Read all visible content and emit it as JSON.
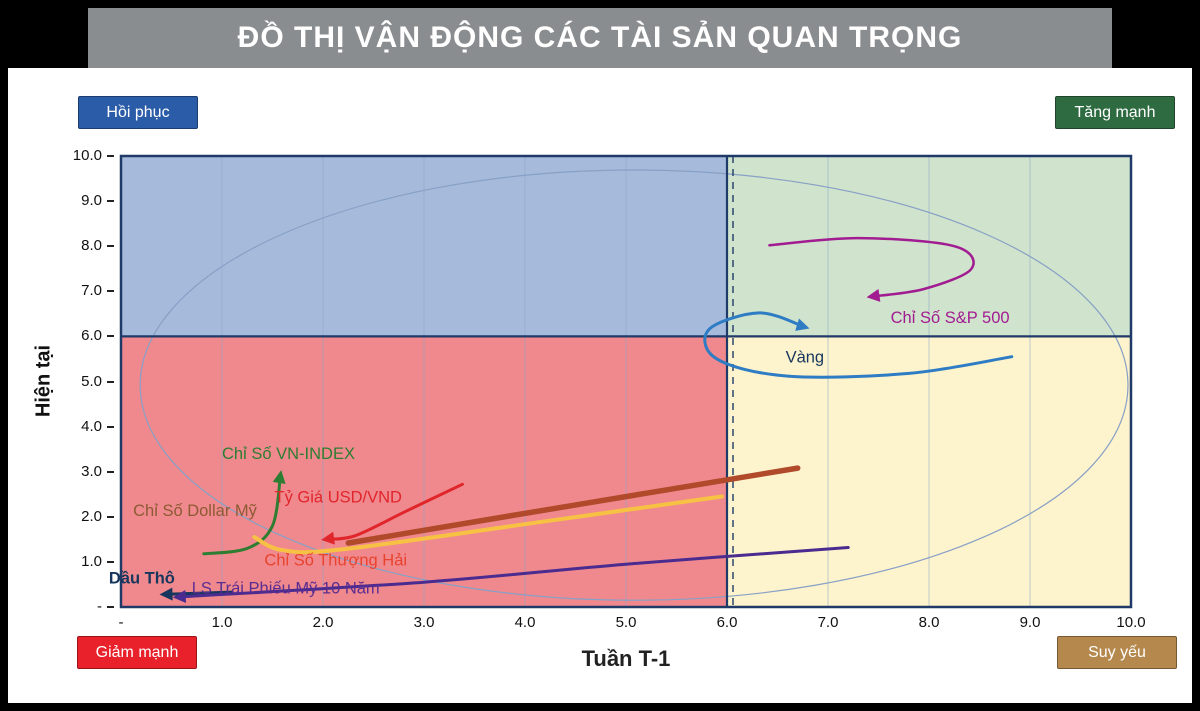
{
  "header": {
    "title": "ĐỒ THỊ VẬN ĐỘNG CÁC TÀI SẢN QUAN TRỌNG"
  },
  "chart_data": {
    "type": "quadrant-trajectory",
    "x_title": "Tuần T-1",
    "y_title": "Hiện tại",
    "x_range": [
      0,
      10
    ],
    "y_range": [
      0,
      10
    ],
    "split": {
      "x": 6,
      "y": 6
    },
    "x_ticks": [
      "-",
      "1.0",
      "2.0",
      "3.0",
      "4.0",
      "5.0",
      "6.0",
      "7.0",
      "8.0",
      "9.0",
      "10.0"
    ],
    "y_ticks": [
      "10.0",
      "9.0",
      "8.0",
      "7.0",
      "6.0",
      "5.0",
      "4.0",
      "3.0",
      "2.0",
      "1.0",
      "-"
    ],
    "quadrants": [
      {
        "name": "recovery",
        "label": "Hồi phục",
        "x": [
          0,
          6
        ],
        "y": [
          6,
          10
        ],
        "color": "#a6bbdc"
      },
      {
        "name": "strong-up",
        "label": "Tăng mạnh",
        "x": [
          6,
          10
        ],
        "y": [
          6,
          10
        ],
        "color": "#d0e3cd"
      },
      {
        "name": "strong-down",
        "label": "Giảm mạnh",
        "x": [
          0,
          6
        ],
        "y": [
          0,
          6
        ],
        "color": "#f0898d"
      },
      {
        "name": "weakening",
        "label": "Suy yếu",
        "x": [
          6,
          10
        ],
        "y": [
          0,
          6
        ],
        "color": "#fdf3cd"
      }
    ],
    "ellipse": {
      "cx": 5.08,
      "cy": 4.92,
      "rx": 4.89,
      "ry": 4.77
    },
    "style": {
      "grid_color": "#8ea6c8",
      "border_color": "#1f3a68",
      "ellipse_color": "#87a0c6",
      "divider_color": "#1f3a68"
    },
    "assets": [
      {
        "name": "sp500",
        "label": "Chỉ Số S&P 500",
        "color": "#a21c91",
        "label_color": "#a21c91",
        "width": 2.5,
        "arrow": true,
        "points": [
          [
            6.42,
            8.02
          ],
          [
            7.3,
            8.18
          ],
          [
            8.25,
            8.0
          ],
          [
            8.42,
            7.5
          ],
          [
            7.95,
            7.05
          ],
          [
            7.42,
            6.88
          ]
        ],
        "label_pos": [
          7.62,
          6.3
        ]
      },
      {
        "name": "gold",
        "label": "Vàng",
        "color": "#2e7cc3",
        "label_color": "#17365d",
        "width": 3,
        "arrow": true,
        "points": [
          [
            8.82,
            5.55
          ],
          [
            7.8,
            5.18
          ],
          [
            6.6,
            5.12
          ],
          [
            5.9,
            5.5
          ],
          [
            5.82,
            6.15
          ],
          [
            6.32,
            6.52
          ],
          [
            6.78,
            6.2
          ]
        ],
        "label_pos": [
          6.58,
          5.42
        ]
      },
      {
        "name": "vn-index",
        "label": "Chỉ Số VN-INDEX",
        "color": "#2e7d32",
        "label_color": "#2e7d32",
        "width": 3,
        "arrow": true,
        "points": [
          [
            0.82,
            1.18
          ],
          [
            1.25,
            1.3
          ],
          [
            1.5,
            1.8
          ],
          [
            1.58,
            2.95
          ]
        ],
        "label_pos": [
          1.0,
          3.28
        ]
      },
      {
        "name": "usd-vnd",
        "label": "Tỷ Giá USD/VND",
        "color": "#e0252b",
        "label_color": "#e0252b",
        "width": 3,
        "arrow": true,
        "points": [
          [
            3.38,
            2.72
          ],
          [
            2.8,
            2.1
          ],
          [
            2.32,
            1.58
          ],
          [
            2.02,
            1.5
          ]
        ],
        "label_pos": [
          1.52,
          2.32
        ]
      },
      {
        "name": "dollar-index",
        "label": "Chỉ Số Dollar Mỹ",
        "color": "#b14a2b",
        "label_color": "#8d5a33",
        "width": 5.5,
        "arrow": false,
        "points": [
          [
            2.25,
            1.42
          ],
          [
            4.6,
            2.3
          ],
          [
            6.7,
            3.08
          ]
        ],
        "label_pos": [
          0.12,
          2.02
        ]
      },
      {
        "name": "shanghai",
        "label": "Chỉ Số Thượng Hải",
        "color": "#f7c244",
        "label_color": "#e8432d",
        "width": 4,
        "arrow": false,
        "points": [
          [
            1.32,
            1.55
          ],
          [
            1.6,
            1.26
          ],
          [
            2.2,
            1.28
          ],
          [
            4.2,
            1.9
          ],
          [
            5.95,
            2.45
          ]
        ],
        "label_pos": [
          1.42,
          0.92
        ]
      },
      {
        "name": "crude-oil",
        "label": "Dầu Thô",
        "color": "#17365d",
        "label_color": "#17365d",
        "width": 3,
        "arrow": true,
        "label_bold": true,
        "points": [
          [
            1.1,
            0.33
          ],
          [
            0.42,
            0.28
          ]
        ],
        "label_pos": [
          -0.12,
          0.52
        ]
      },
      {
        "name": "us-10y-yield",
        "label": "LS Trái Phiếu Mỹ 10 Năm",
        "color": "#4a2b8f",
        "label_color": "#5b2d90",
        "width": 3,
        "arrow": true,
        "points": [
          [
            7.2,
            1.32
          ],
          [
            5.0,
            0.95
          ],
          [
            3.0,
            0.55
          ],
          [
            0.55,
            0.22
          ]
        ],
        "label_pos": [
          0.7,
          0.3
        ]
      }
    ]
  }
}
